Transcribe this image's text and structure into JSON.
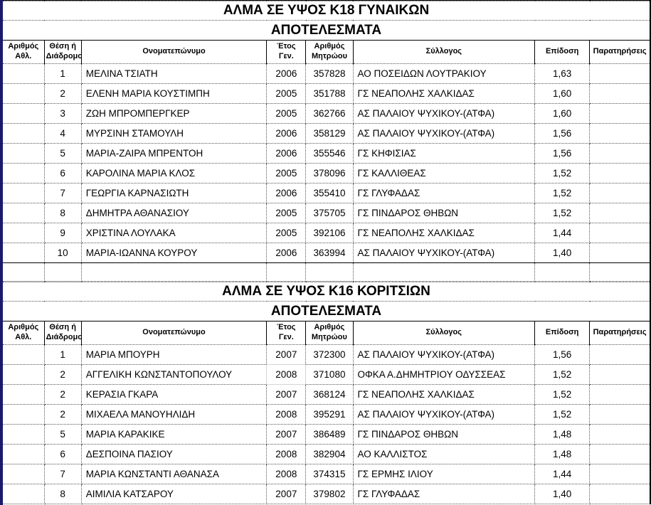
{
  "page": {
    "accent_strip_color": "#191970",
    "selected_cell_border": "#d4d4d4"
  },
  "columns": [
    "Αριθμός Αθλ.",
    "Θέση ή Διάδρομος",
    "Ονοματεπώνυμο",
    "Έτος Γεν.",
    "Αριθμός Μητρώου",
    "Σύλλογος",
    "Επίδοση",
    "Παρατηρήσεις"
  ],
  "tables": [
    {
      "title": "ΑΛΜΑ ΣΕ ΥΨΟΣ Κ18 ΓΥΝΑΙΚΩΝ",
      "subtitle": "ΑΠΟΤΕΛΕΣΜΑΤΑ",
      "trailing_empty_row": true,
      "rows": [
        {
          "athlete_no": "",
          "position": "1",
          "name": "ΜΕΛΙΝΑ ΤΣΙΑΤΗ",
          "year": "2006",
          "reg_no": "357828",
          "club": "ΑΟ ΠΟΣΕΙΔΩΝ ΛΟΥΤΡΑΚΙΟΥ",
          "performance": "1,63",
          "remarks": ""
        },
        {
          "athlete_no": "",
          "position": "2",
          "name": "ΕΛΕΝΗ ΜΑΡΙΑ ΚΟΥΣΤΙΜΠΗ",
          "year": "2005",
          "reg_no": "351788",
          "club": "ΓΣ ΝΕΑΠΟΛΗΣ ΧΑΛΚΙΔΑΣ",
          "performance": "1,60",
          "remarks": ""
        },
        {
          "athlete_no": "",
          "position": "3",
          "name": "ΖΩΗ ΜΠΡΟΜΠΕΡΓΚΕΡ",
          "year": "2005",
          "reg_no": "362766",
          "club": "ΑΣ ΠΑΛΑΙΟΥ ΨΥΧΙΚΟΥ-(ΑΤΦΑ)",
          "performance": "1,60",
          "remarks": ""
        },
        {
          "athlete_no": "",
          "position": "4",
          "name": "ΜΥΡΣΙΝΗ ΣΤΑΜΟΥΛΗ",
          "year": "2006",
          "reg_no": "358129",
          "club": "ΑΣ ΠΑΛΑΙΟΥ ΨΥΧΙΚΟΥ-(ΑΤΦΑ)",
          "performance": "1,56",
          "remarks": ""
        },
        {
          "athlete_no": "",
          "position": "5",
          "name": "ΜΑΡΙΑ-ΖΑΙΡΑ ΜΠΡΕΝΤΟΗ",
          "year": "2006",
          "reg_no": "355546",
          "club": "ΓΣ ΚΗΦΙΣΙΑΣ",
          "performance": "1,56",
          "remarks": ""
        },
        {
          "athlete_no": "",
          "position": "6",
          "name": "ΚΑΡΟΛΙΝΑ ΜΑΡΙΑ ΚΛΟΣ",
          "year": "2005",
          "reg_no": "378096",
          "club": "ΓΣ ΚΑΛΛΙΘΕΑΣ",
          "performance": "1,52",
          "remarks": ""
        },
        {
          "athlete_no": "",
          "position": "7",
          "name": "ΓΕΩΡΓΙΑ ΚΑΡΝΑΣΙΩΤΗ",
          "year": "2006",
          "reg_no": "355410",
          "club": "ΓΣ ΓΛΥΦΑΔΑΣ",
          "performance": "1,52",
          "remarks": ""
        },
        {
          "athlete_no": "",
          "position": "8",
          "name": "ΔΗΜΗΤΡΑ ΑΘΑΝΑΣΙΟΥ",
          "year": "2005",
          "reg_no": "375705",
          "club": "ΓΣ ΠΙΝΔΑΡΟΣ ΘΗΒΩΝ",
          "performance": "1,52",
          "remarks": ""
        },
        {
          "athlete_no": "",
          "position": "9",
          "name": "ΧΡΙΣΤΙΝΑ ΛΟΥΛΑΚΑ",
          "year": "2005",
          "reg_no": "392106",
          "club": "ΓΣ ΝΕΑΠΟΛΗΣ ΧΑΛΚΙΔΑΣ",
          "performance": "1,44",
          "remarks": ""
        },
        {
          "athlete_no": "",
          "position": "10",
          "name": "ΜΑΡΙΑ-ΙΩΑΝΝΑ ΚΟΥΡΟΥ",
          "year": "2006",
          "reg_no": "363994",
          "club": "ΑΣ ΠΑΛΑΙΟΥ ΨΥΧΙΚΟΥ-(ΑΤΦΑ)",
          "performance": "1,40",
          "remarks": ""
        }
      ]
    },
    {
      "title": "ΑΛΜΑ ΣΕ ΥΨΟΣ Κ16 ΚΟΡΙΤΣΙΩΝ",
      "subtitle": "ΑΠΟΤΕΛΕΣΜΑΤΑ",
      "trailing_empty_row": false,
      "rows": [
        {
          "athlete_no": "",
          "position": "1",
          "name": "ΜΑΡΙΑ ΜΠΟΥΡΗ",
          "year": "2007",
          "reg_no": "372300",
          "club": "ΑΣ ΠΑΛΑΙΟΥ ΨΥΧΙΚΟΥ-(ΑΤΦΑ)",
          "performance": "1,56",
          "remarks": ""
        },
        {
          "athlete_no": "",
          "position": "2",
          "name": "ΑΓΓΕΛΙΚΗ ΚΩΝΣΤΑΝΤΟΠΟΥΛΟΥ",
          "year": "2008",
          "reg_no": "371080",
          "club": "ΟΦΚΑ Α.ΔΗΜΗΤΡΙΟΥ ΟΔΥΣΣΕΑΣ",
          "performance": "1,52",
          "remarks": ""
        },
        {
          "athlete_no": "",
          "position": "2",
          "name": "ΚΕΡΑΣΙΑ ΓΚΑΡΑ",
          "year": "2007",
          "reg_no": "368124",
          "club": "ΓΣ ΝΕΑΠΟΛΗΣ ΧΑΛΚΙΔΑΣ",
          "performance": "1,52",
          "remarks": ""
        },
        {
          "athlete_no": "",
          "position": "2",
          "name": "ΜΙΧΑΕΛΑ ΜΑΝΟΥΗΛΙΔΗ",
          "year": "2008",
          "reg_no": "395291",
          "club": "ΑΣ ΠΑΛΑΙΟΥ ΨΥΧΙΚΟΥ-(ΑΤΦΑ)",
          "performance": "1,52",
          "remarks": ""
        },
        {
          "athlete_no": "",
          "position": "5",
          "name": "ΜΑΡΙΑ ΚΑΡΑΚΙΚΕ",
          "year": "2007",
          "reg_no": "386489",
          "club": "ΓΣ ΠΙΝΔΑΡΟΣ ΘΗΒΩΝ",
          "performance": "1,48",
          "remarks": ""
        },
        {
          "athlete_no": "",
          "position": "6",
          "name": "ΔΕΣΠΟΙΝΑ ΠΑΣΙΟΥ",
          "year": "2008",
          "reg_no": "382904",
          "club": "ΑΟ ΚΑΛΛΙΣΤΟΣ",
          "performance": "1,48",
          "remarks": ""
        },
        {
          "athlete_no": "",
          "position": "7",
          "name": "ΜΑΡΙΑ ΚΩΝΣΤΑΝΤΙ ΑΘΑΝΑΣΑ",
          "year": "2008",
          "reg_no": "374315",
          "club": "ΓΣ ΕΡΜΗΣ ΙΛΙΟΥ",
          "performance": "1,44",
          "remarks": ""
        },
        {
          "athlete_no": "",
          "position": "8",
          "name": "ΑΙΜΙΛΙΑ ΚΑΤΣΑΡΟΥ",
          "year": "2007",
          "reg_no": "379802",
          "club": "ΓΣ ΓΛΥΦΑΔΑΣ",
          "performance": "1,40",
          "remarks": ""
        }
      ]
    }
  ],
  "selected_cell": {
    "table": 1,
    "row": 1,
    "field": "year"
  }
}
